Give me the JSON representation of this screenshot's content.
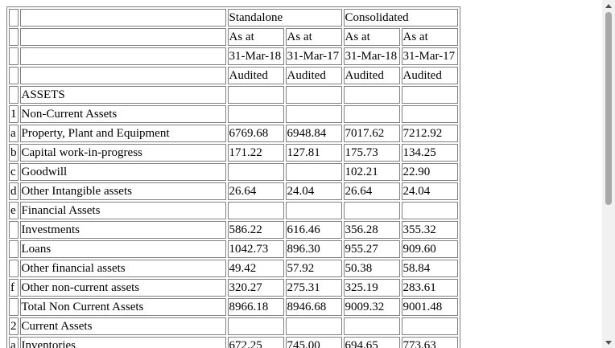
{
  "table": {
    "header_rows": [
      [
        "",
        "",
        "Standalone",
        "Consolidated"
      ],
      [
        "",
        "",
        "As at",
        "As at",
        "As at",
        "As at"
      ],
      [
        "",
        "",
        "31-Mar-18",
        "31-Mar-17",
        "31-Mar-18",
        "31-Mar-17"
      ],
      [
        "",
        "",
        "Audited",
        "Audited",
        "Audited",
        "Audited"
      ]
    ],
    "rows": [
      {
        "idx": "",
        "label": "ASSETS",
        "values": [
          "",
          "",
          "",
          ""
        ]
      },
      {
        "idx": "1",
        "label": "Non-Current Assets",
        "values": [
          "",
          "",
          "",
          ""
        ]
      },
      {
        "idx": "a",
        "label": "Property, Plant and Equipment",
        "values": [
          "6769.68",
          "6948.84",
          "7017.62",
          "7212.92"
        ]
      },
      {
        "idx": "b",
        "label": "Capital work-in-progress",
        "values": [
          "171.22",
          "127.81",
          "175.73",
          "134.25"
        ]
      },
      {
        "idx": "c",
        "label": "Goodwill",
        "values": [
          "",
          "",
          "102.21",
          "22.90"
        ]
      },
      {
        "idx": "d",
        "label": "Other Intangible assets",
        "values": [
          "26.64",
          "24.04",
          "26.64",
          "24.04"
        ]
      },
      {
        "idx": "e",
        "label": "Financial Assets",
        "values": [
          "",
          "",
          "",
          ""
        ]
      },
      {
        "idx": "",
        "label": "Investments",
        "values": [
          "586.22",
          "616.46",
          "356.28",
          "355.32"
        ]
      },
      {
        "idx": "",
        "label": "Loans",
        "values": [
          "1042.73",
          "896.30",
          "955.27",
          "909.60"
        ]
      },
      {
        "idx": "",
        "label": "Other financial assets",
        "values": [
          "49.42",
          "57.92",
          "50.38",
          "58.84"
        ]
      },
      {
        "idx": "f",
        "label": "Other non-current assets",
        "values": [
          "320.27",
          "275.31",
          "325.19",
          "283.61"
        ]
      },
      {
        "idx": "",
        "label": "Total Non Current Assets",
        "values": [
          "8966.18",
          "8946.68",
          "9009.32",
          "9001.48"
        ]
      },
      {
        "idx": "2",
        "label": "Current Assets",
        "values": [
          "",
          "",
          "",
          ""
        ]
      },
      {
        "idx": "a",
        "label": "Inventories",
        "values": [
          "672.25",
          "745.00",
          "694.65",
          "773.63"
        ]
      }
    ]
  },
  "scrollbar": {
    "up_icon": "triangle-up-icon",
    "down_icon": "triangle-down-icon",
    "track_color": "#f1f1f1",
    "thumb_color": "#a8a8a8"
  }
}
